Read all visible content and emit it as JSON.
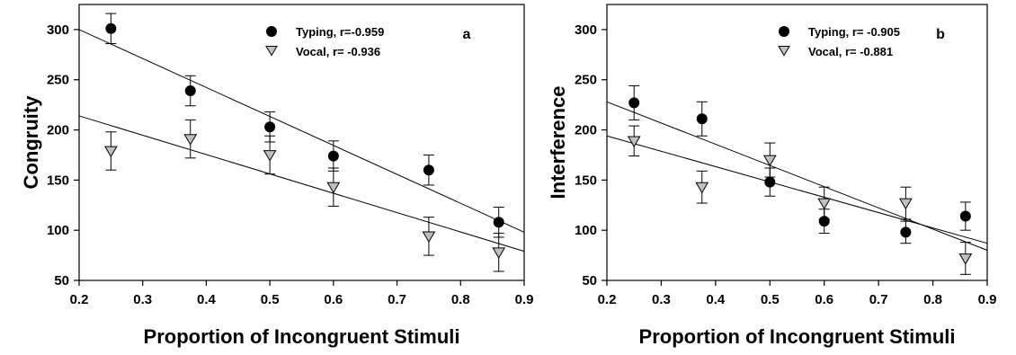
{
  "chart_data": [
    {
      "type": "scatter",
      "panel_label": "a",
      "xlabel": "Proportion of Incongruent Stimuli",
      "ylabel": "Congruity",
      "xlim": [
        0.2,
        0.9
      ],
      "ylim": [
        50,
        325
      ],
      "x_ticks": [
        0.2,
        0.3,
        0.4,
        0.5,
        0.6,
        0.7,
        0.8,
        0.9
      ],
      "x_tick_labels": [
        "0.2",
        "0.3",
        "0.4",
        "0.5",
        "0.6",
        "0.7",
        "0.8",
        "0.9"
      ],
      "y_ticks": [
        50,
        100,
        150,
        200,
        250,
        300
      ],
      "y_tick_labels": [
        "50",
        "100",
        "150",
        "200",
        "250",
        "300"
      ],
      "grid": false,
      "legend_position": "top-right",
      "series": [
        {
          "name": "Typing, r=-0.959",
          "marker": "circle",
          "color": "#000000",
          "x": [
            0.25,
            0.375,
            0.5,
            0.6,
            0.75,
            0.86
          ],
          "y": [
            301,
            239,
            203,
            174,
            160,
            108
          ],
          "err": [
            15,
            15,
            15,
            15,
            15,
            15
          ],
          "fit": [
            300,
            98
          ]
        },
        {
          "name": "Vocal, r= -0.936",
          "marker": "triangle-down",
          "color": "#bfbfbf",
          "x": [
            0.25,
            0.375,
            0.5,
            0.6,
            0.75,
            0.86
          ],
          "y": [
            179,
            191,
            175,
            143,
            94,
            78
          ],
          "err": [
            19,
            19,
            19,
            19,
            19,
            19
          ],
          "fit": [
            214,
            79
          ]
        }
      ]
    },
    {
      "type": "scatter",
      "panel_label": "b",
      "xlabel": "Proportion of Incongruent Stimuli",
      "ylabel": "Interference",
      "xlim": [
        0.2,
        0.9
      ],
      "ylim": [
        50,
        325
      ],
      "x_ticks": [
        0.2,
        0.3,
        0.4,
        0.5,
        0.6,
        0.7,
        0.8,
        0.9
      ],
      "x_tick_labels": [
        "0.2",
        "0.3",
        "0.4",
        "0.5",
        "0.6",
        "0.7",
        "0.8",
        "0.9"
      ],
      "y_ticks": [
        50,
        100,
        150,
        200,
        250,
        300
      ],
      "y_tick_labels": [
        "50",
        "100",
        "150",
        "200",
        "250",
        "300"
      ],
      "grid": false,
      "legend_position": "top-right",
      "series": [
        {
          "name": "Typing, r= -0.905",
          "marker": "circle",
          "color": "#000000",
          "x": [
            0.25,
            0.375,
            0.5,
            0.6,
            0.75,
            0.86
          ],
          "y": [
            227,
            211,
            148,
            109,
            98,
            114
          ],
          "err": [
            17,
            17,
            14,
            12,
            11,
            14
          ],
          "fit": [
            228,
            80
          ]
        },
        {
          "name": "Vocal, r= -0.881",
          "marker": "triangle-down",
          "color": "#bfbfbf",
          "x": [
            0.25,
            0.375,
            0.5,
            0.6,
            0.75,
            0.86
          ],
          "y": [
            189,
            143,
            170,
            127,
            127,
            72
          ],
          "err": [
            15,
            16,
            17,
            16,
            16,
            16
          ],
          "fit": [
            194,
            87
          ]
        }
      ]
    }
  ]
}
